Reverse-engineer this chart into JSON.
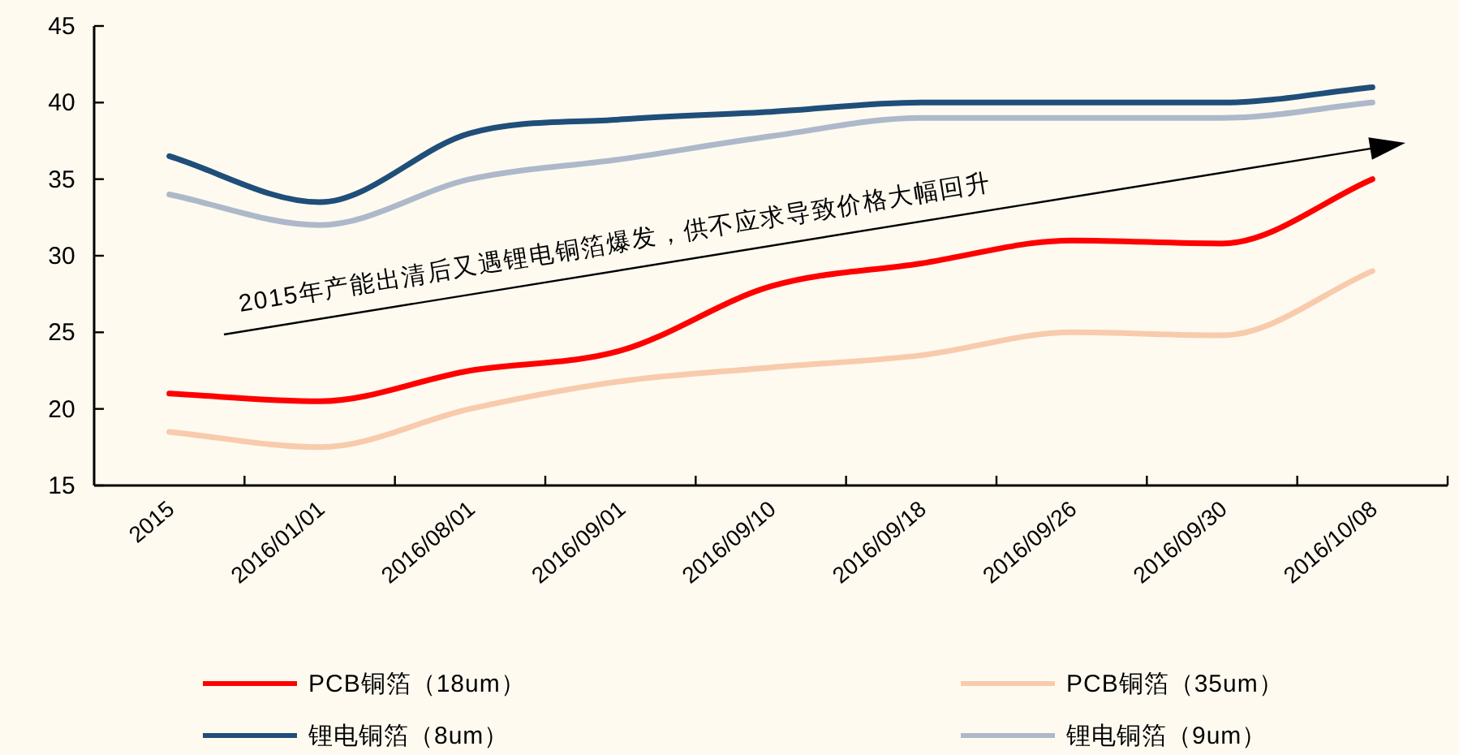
{
  "chart_data": {
    "type": "line",
    "categories": [
      "2015",
      "2016/01/01",
      "2016/08/01",
      "2016/09/01",
      "2016/09/10",
      "2016/09/18",
      "2016/09/26",
      "2016/09/30",
      "2016/10/08"
    ],
    "series": [
      {
        "name": "PCB铜箔（18um）",
        "color": "#ff0000",
        "values": [
          21,
          20.5,
          22.5,
          23.8,
          28,
          29.5,
          31,
          30.8,
          35
        ]
      },
      {
        "name": "PCB铜箔（35um）",
        "color": "#f8cbad",
        "values": [
          18.5,
          17.5,
          20,
          21.8,
          22.7,
          23.5,
          25,
          24.8,
          29
        ]
      },
      {
        "name": "锂电铜箔（8um）",
        "color": "#1f4e79",
        "values": [
          36.5,
          33.5,
          38,
          38.9,
          39.4,
          40,
          40,
          40,
          41
        ]
      },
      {
        "name": "锂电铜箔（9um）",
        "color": "#adb9ca",
        "values": [
          34,
          32,
          35,
          36.3,
          37.8,
          39,
          39,
          39,
          40
        ]
      }
    ],
    "ylim": [
      15,
      45
    ],
    "yticks": [
      15,
      20,
      25,
      30,
      35,
      40,
      45
    ],
    "legend": "bottom",
    "annotations": [
      "2015年产能出清后又遇锂电铜箔爆发，供不应求导致价格大幅回升"
    ]
  }
}
